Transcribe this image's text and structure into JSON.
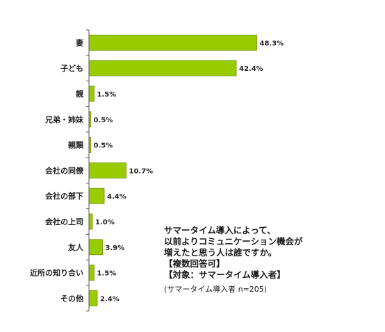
{
  "chart_data": {
    "type": "bar",
    "orientation": "horizontal",
    "categories": [
      "妻",
      "子ども",
      "親",
      "兄弟・姉妹",
      "親類",
      "会社の同僚",
      "会社の部下",
      "会社の上司",
      "友人",
      "近所の知り合い",
      "その他"
    ],
    "values": [
      48.3,
      42.4,
      1.5,
      0.5,
      0.5,
      10.7,
      4.4,
      1.0,
      3.9,
      1.5,
      2.4
    ],
    "value_labels": [
      "48.3%",
      "42.4%",
      "1.5%",
      "0.5%",
      "0.5%",
      "10.7%",
      "4.4%",
      "1.0%",
      "3.9%",
      "1.5%",
      "2.4%"
    ],
    "xlim": [
      0,
      60
    ],
    "grid": false,
    "bar_color": "#99cc00",
    "bar_edge_color": "#6b8e00"
  },
  "note": {
    "lines": [
      "サマータイム導入によって、",
      "以前よりコミュニケーション機会が",
      "増えたと思う人は誰ですか。",
      "【複数回答可】",
      "【対象：サマータイム導入者】"
    ],
    "sample": "(サマータイム導入者 n=205)"
  }
}
